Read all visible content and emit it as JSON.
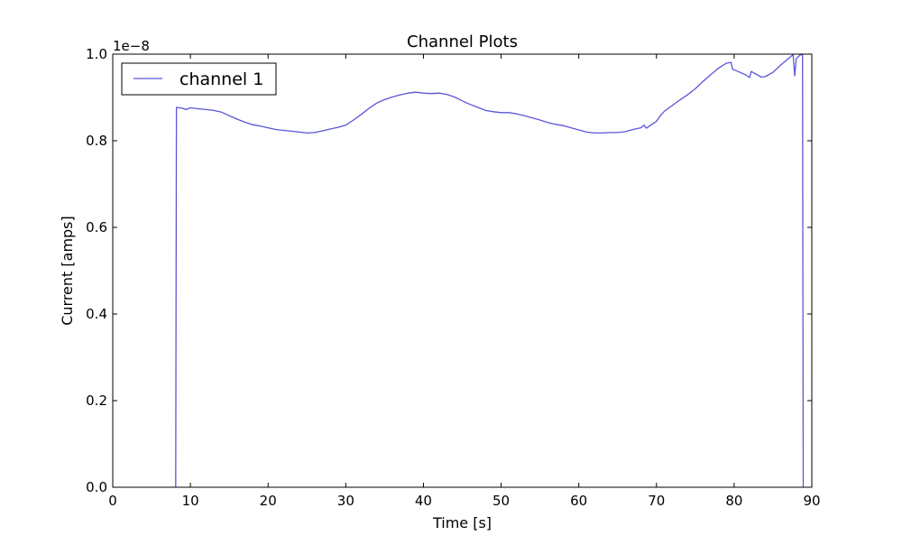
{
  "chart_data": {
    "type": "line",
    "title": "Channel Plots",
    "xlabel": "Time [s]",
    "ylabel": "Current [amps]",
    "offset_text": "1e−8",
    "xlim": [
      0,
      90
    ],
    "ylim": [
      0.0,
      1.0
    ],
    "y_multiplier": 1e-08,
    "xticks": [
      0,
      10,
      20,
      30,
      40,
      50,
      60,
      70,
      80,
      90
    ],
    "xtick_labels": [
      "0",
      "10",
      "20",
      "30",
      "40",
      "50",
      "60",
      "70",
      "80",
      "90"
    ],
    "yticks": [
      0.0,
      0.2,
      0.4,
      0.6,
      0.8,
      1.0
    ],
    "ytick_labels": [
      "0.0",
      "0.2",
      "0.4",
      "0.6",
      "0.8",
      "1.0"
    ],
    "grid": false,
    "legend": {
      "placement": "top-left"
    },
    "series": [
      {
        "name": "channel 1",
        "color": "#5b55d6",
        "x": [
          8.1,
          8.2,
          9.0,
          9.4,
          10.0,
          11.0,
          12.0,
          13.0,
          14.0,
          15.0,
          16.0,
          17.0,
          18.0,
          19.0,
          20.0,
          21.0,
          22.0,
          23.0,
          24.0,
          25.0,
          26.0,
          27.0,
          28.0,
          29.0,
          30.0,
          31.0,
          32.0,
          33.0,
          34.0,
          35.0,
          36.0,
          37.0,
          38.0,
          39.0,
          40.0,
          41.0,
          42.0,
          43.0,
          44.0,
          45.0,
          46.0,
          47.0,
          48.0,
          49.0,
          50.0,
          51.0,
          52.0,
          53.0,
          54.0,
          55.0,
          56.0,
          57.0,
          58.0,
          59.0,
          60.0,
          61.0,
          62.0,
          63.0,
          64.0,
          65.0,
          66.0,
          67.0,
          68.0,
          68.4,
          68.7,
          69.0,
          70.0,
          70.5,
          71.0,
          72.0,
          73.0,
          74.0,
          75.0,
          76.0,
          77.0,
          78.0,
          79.0,
          79.6,
          79.8,
          80.5,
          81.5,
          82.0,
          82.2,
          83.0,
          83.5,
          84.0,
          85.0,
          86.0,
          87.0,
          87.6,
          87.8,
          88.0,
          88.5,
          88.8,
          88.9
        ],
        "y": [
          0.0,
          0.877,
          0.875,
          0.872,
          0.876,
          0.874,
          0.872,
          0.87,
          0.866,
          0.858,
          0.85,
          0.843,
          0.837,
          0.834,
          0.83,
          0.826,
          0.824,
          0.822,
          0.82,
          0.818,
          0.819,
          0.823,
          0.827,
          0.831,
          0.836,
          0.848,
          0.861,
          0.875,
          0.887,
          0.895,
          0.901,
          0.906,
          0.91,
          0.912,
          0.91,
          0.909,
          0.91,
          0.907,
          0.901,
          0.892,
          0.884,
          0.877,
          0.87,
          0.867,
          0.865,
          0.865,
          0.862,
          0.858,
          0.853,
          0.848,
          0.842,
          0.838,
          0.835,
          0.83,
          0.825,
          0.82,
          0.818,
          0.818,
          0.819,
          0.819,
          0.821,
          0.826,
          0.83,
          0.836,
          0.829,
          0.833,
          0.845,
          0.858,
          0.868,
          0.881,
          0.894,
          0.906,
          0.92,
          0.937,
          0.953,
          0.968,
          0.979,
          0.981,
          0.965,
          0.96,
          0.952,
          0.946,
          0.96,
          0.952,
          0.947,
          0.948,
          0.958,
          0.975,
          0.99,
          0.999,
          0.95,
          0.99,
          0.998,
          1.0,
          0.0
        ]
      }
    ]
  }
}
